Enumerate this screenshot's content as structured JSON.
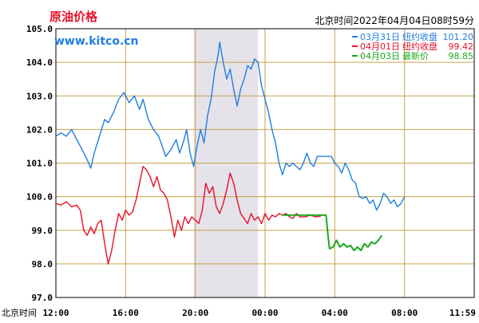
{
  "header": {
    "title": "原油价格",
    "url": "www.kitco.cn",
    "timestamp": "北京时间2022年04月04日08时59分"
  },
  "colors": {
    "series_0331": "#1f7ee0",
    "series_0401": "#e8102a",
    "series_0403": "#1aa81a",
    "grid": "#c8a24a",
    "shade": "#e6e2ea"
  },
  "chart_data": {
    "type": "line",
    "xlabel": "北京时间",
    "y_ticks": [
      "105.0",
      "104.0",
      "103.0",
      "102.0",
      "101.0",
      "100.0",
      "99.0",
      "98.0",
      "97.0"
    ],
    "ylim": [
      97.0,
      105.0
    ],
    "x_ticks": [
      "12:00",
      "16:00",
      "20:00",
      "00:00",
      "04:00",
      "08:00",
      "11:59"
    ],
    "xlim_hours": [
      0,
      24
    ],
    "shaded_hours": [
      7.9,
      11.6
    ],
    "legend_position": "top-right",
    "legend": [
      {
        "label": "03月31日",
        "type": "纽约收盘",
        "value": "101.20"
      },
      {
        "label": "04月01日",
        "type": "纽约收盘",
        "value": "99.42"
      },
      {
        "label": "04月03日",
        "type": "最新价",
        "value": "98.85"
      }
    ],
    "series": [
      {
        "name": "03月31日",
        "points": [
          [
            0.0,
            101.8
          ],
          [
            0.3,
            101.9
          ],
          [
            0.6,
            101.8
          ],
          [
            0.9,
            102.0
          ],
          [
            1.2,
            101.7
          ],
          [
            1.5,
            101.4
          ],
          [
            1.8,
            101.1
          ],
          [
            2.0,
            100.85
          ],
          [
            2.2,
            101.3
          ],
          [
            2.5,
            101.8
          ],
          [
            2.8,
            102.3
          ],
          [
            3.0,
            102.2
          ],
          [
            3.3,
            102.5
          ],
          [
            3.6,
            102.9
          ],
          [
            3.9,
            103.1
          ],
          [
            4.2,
            102.8
          ],
          [
            4.5,
            103.0
          ],
          [
            4.8,
            102.6
          ],
          [
            5.0,
            102.9
          ],
          [
            5.3,
            102.3
          ],
          [
            5.6,
            102.0
          ],
          [
            5.9,
            101.8
          ],
          [
            6.1,
            101.5
          ],
          [
            6.3,
            101.2
          ],
          [
            6.6,
            101.4
          ],
          [
            6.9,
            101.7
          ],
          [
            7.1,
            101.3
          ],
          [
            7.3,
            101.6
          ],
          [
            7.5,
            102.0
          ],
          [
            7.7,
            101.3
          ],
          [
            7.9,
            100.9
          ],
          [
            8.1,
            101.5
          ],
          [
            8.3,
            102.0
          ],
          [
            8.5,
            101.6
          ],
          [
            8.7,
            102.4
          ],
          [
            8.9,
            102.9
          ],
          [
            9.1,
            103.7
          ],
          [
            9.3,
            104.2
          ],
          [
            9.4,
            104.6
          ],
          [
            9.6,
            104.0
          ],
          [
            9.8,
            103.5
          ],
          [
            10.0,
            103.8
          ],
          [
            10.2,
            103.2
          ],
          [
            10.4,
            102.7
          ],
          [
            10.6,
            103.2
          ],
          [
            10.8,
            103.5
          ],
          [
            11.0,
            103.9
          ],
          [
            11.2,
            103.8
          ],
          [
            11.4,
            104.1
          ],
          [
            11.6,
            104.0
          ],
          [
            11.8,
            103.3
          ],
          [
            12.0,
            102.9
          ],
          [
            12.2,
            102.5
          ],
          [
            12.4,
            102.0
          ],
          [
            12.6,
            101.6
          ],
          [
            12.8,
            101.0
          ],
          [
            13.0,
            100.65
          ],
          [
            13.2,
            101.0
          ],
          [
            13.4,
            100.9
          ],
          [
            13.6,
            101.0
          ],
          [
            13.8,
            100.9
          ],
          [
            14.0,
            100.8
          ],
          [
            14.2,
            101.0
          ],
          [
            14.4,
            101.3
          ],
          [
            14.6,
            101.0
          ],
          [
            14.8,
            100.9
          ],
          [
            15.0,
            101.2
          ],
          [
            15.4,
            101.2
          ],
          [
            15.8,
            101.2
          ],
          [
            16.0,
            101.0
          ],
          [
            16.2,
            100.9
          ],
          [
            16.4,
            100.7
          ],
          [
            16.6,
            101.0
          ],
          [
            16.8,
            100.8
          ],
          [
            17.0,
            100.5
          ],
          [
            17.2,
            100.4
          ],
          [
            17.4,
            100.0
          ],
          [
            17.6,
            99.95
          ],
          [
            17.8,
            100.0
          ],
          [
            18.0,
            99.8
          ],
          [
            18.2,
            99.9
          ],
          [
            18.4,
            99.6
          ],
          [
            18.6,
            99.8
          ],
          [
            18.8,
            100.1
          ],
          [
            19.0,
            100.0
          ],
          [
            19.2,
            99.8
          ],
          [
            19.4,
            99.9
          ],
          [
            19.6,
            99.7
          ],
          [
            19.8,
            99.8
          ],
          [
            20.0,
            100.0
          ]
        ]
      },
      {
        "name": "04月01日",
        "points": [
          [
            0.0,
            99.8
          ],
          [
            0.3,
            99.75
          ],
          [
            0.6,
            99.85
          ],
          [
            0.9,
            99.7
          ],
          [
            1.2,
            99.75
          ],
          [
            1.4,
            99.6
          ],
          [
            1.6,
            99.0
          ],
          [
            1.8,
            98.85
          ],
          [
            2.0,
            99.1
          ],
          [
            2.2,
            98.9
          ],
          [
            2.4,
            99.2
          ],
          [
            2.6,
            99.3
          ],
          [
            2.8,
            98.6
          ],
          [
            3.0,
            98.0
          ],
          [
            3.2,
            98.4
          ],
          [
            3.4,
            99.0
          ],
          [
            3.6,
            99.5
          ],
          [
            3.8,
            99.3
          ],
          [
            4.0,
            99.6
          ],
          [
            4.2,
            99.45
          ],
          [
            4.4,
            99.55
          ],
          [
            4.6,
            99.9
          ],
          [
            4.8,
            100.4
          ],
          [
            5.0,
            100.9
          ],
          [
            5.2,
            100.8
          ],
          [
            5.4,
            100.6
          ],
          [
            5.6,
            100.3
          ],
          [
            5.8,
            100.6
          ],
          [
            6.0,
            100.2
          ],
          [
            6.2,
            100.1
          ],
          [
            6.4,
            99.9
          ],
          [
            6.6,
            99.4
          ],
          [
            6.8,
            98.8
          ],
          [
            7.0,
            99.3
          ],
          [
            7.2,
            99.0
          ],
          [
            7.4,
            99.4
          ],
          [
            7.6,
            99.2
          ],
          [
            7.8,
            99.4
          ],
          [
            8.0,
            99.3
          ],
          [
            8.2,
            99.2
          ],
          [
            8.4,
            99.6
          ],
          [
            8.6,
            100.4
          ],
          [
            8.8,
            100.1
          ],
          [
            9.0,
            100.3
          ],
          [
            9.2,
            99.7
          ],
          [
            9.4,
            99.5
          ],
          [
            9.6,
            99.8
          ],
          [
            9.8,
            100.2
          ],
          [
            10.0,
            100.7
          ],
          [
            10.2,
            100.4
          ],
          [
            10.4,
            99.9
          ],
          [
            10.6,
            99.5
          ],
          [
            10.8,
            99.35
          ],
          [
            11.0,
            99.2
          ],
          [
            11.2,
            99.5
          ],
          [
            11.4,
            99.3
          ],
          [
            11.6,
            99.4
          ],
          [
            11.8,
            99.2
          ],
          [
            12.0,
            99.5
          ],
          [
            12.2,
            99.3
          ],
          [
            12.4,
            99.45
          ],
          [
            12.6,
            99.4
          ],
          [
            12.8,
            99.5
          ],
          [
            13.0,
            99.45
          ],
          [
            13.2,
            99.5
          ],
          [
            13.4,
            99.4
          ],
          [
            13.6,
            99.35
          ],
          [
            13.8,
            99.5
          ],
          [
            14.0,
            99.4
          ],
          [
            14.3,
            99.4
          ],
          [
            14.6,
            99.45
          ],
          [
            14.9,
            99.4
          ],
          [
            15.2,
            99.42
          ]
        ]
      },
      {
        "name": "04月03日",
        "points": [
          [
            13.0,
            99.45
          ],
          [
            13.4,
            99.45
          ],
          [
            13.8,
            99.45
          ],
          [
            14.2,
            99.45
          ],
          [
            14.6,
            99.45
          ],
          [
            15.0,
            99.45
          ],
          [
            15.4,
            99.45
          ],
          [
            15.5,
            99.45
          ],
          [
            15.6,
            98.9
          ],
          [
            15.7,
            98.45
          ],
          [
            15.9,
            98.5
          ],
          [
            16.1,
            98.7
          ],
          [
            16.3,
            98.5
          ],
          [
            16.5,
            98.6
          ],
          [
            16.7,
            98.5
          ],
          [
            16.9,
            98.55
          ],
          [
            17.1,
            98.4
          ],
          [
            17.3,
            98.5
          ],
          [
            17.5,
            98.4
          ],
          [
            17.7,
            98.6
          ],
          [
            17.9,
            98.5
          ],
          [
            18.1,
            98.65
          ],
          [
            18.3,
            98.6
          ],
          [
            18.5,
            98.7
          ],
          [
            18.7,
            98.85
          ]
        ]
      }
    ]
  }
}
